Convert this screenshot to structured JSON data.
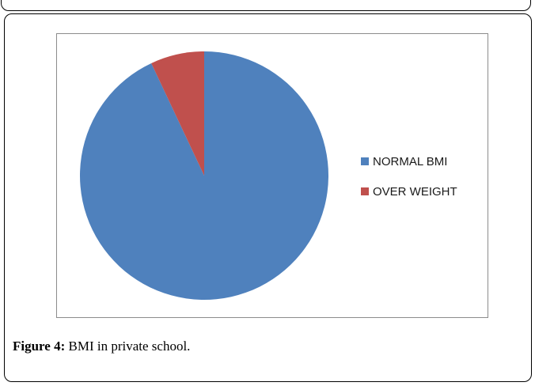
{
  "chart_data": {
    "type": "pie",
    "categories": [
      "NORMAL BMI",
      "OVER WEIGHT"
    ],
    "values": [
      93,
      7
    ],
    "colors": [
      "#4f81bd",
      "#c0504d"
    ],
    "legend_position": "right"
  },
  "caption": {
    "label": "Figure 4:",
    "text": "BMI in private school."
  }
}
